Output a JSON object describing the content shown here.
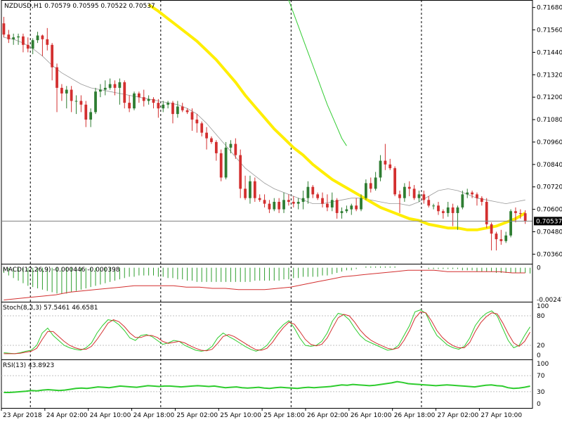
{
  "chart_data": {
    "type": "candlestick",
    "symbol": "NZDUSD,H1",
    "ohlc_header": "0.70579 0.70595 0.70522 0.70537",
    "current_price": "0.70537",
    "colors": {
      "background": "#ffffff",
      "bull": "#2e7d32",
      "bear": "#d32f2f",
      "ma_yellow": "#ffee00",
      "ma_green": "#33cc33",
      "ma_gray": "#999999",
      "grid": "#000000",
      "macd_hist": "#2e9e2e",
      "macd_signal": "#d32f2f",
      "stoch_main": "#2ecc2e",
      "stoch_signal": "#d32f2f",
      "rsi": "#2ecc2e"
    },
    "price_axis": {
      "min": 0.7032,
      "max": 0.7172,
      "ticks": [
        "0.71680",
        "0.71560",
        "0.71440",
        "0.71320",
        "0.71200",
        "0.71080",
        "0.70960",
        "0.70840",
        "0.70720",
        "0.70600",
        "0.70480",
        "0.70360"
      ]
    },
    "x_axis": {
      "bars_total": 110,
      "labels": [
        "23 Apr 2018",
        "24 Apr 02:00",
        "24 Apr 10:00",
        "24 Apr 18:00",
        "25 Apr 02:00",
        "25 Apr 10:00",
        "25 Apr 18:00",
        "26 Apr 02:00",
        "26 Apr 10:00",
        "26 Apr 18:00",
        "27 Apr 02:00",
        "27 Apr 10:00"
      ],
      "label_bars": [
        0,
        9,
        18,
        27,
        36,
        45,
        54,
        63,
        72,
        81,
        90,
        99
      ],
      "vlines_at_bars": [
        6,
        33,
        60,
        87
      ]
    },
    "candles": [
      [
        0.71595,
        0.71535,
        0.7152,
        0.7163
      ],
      [
        0.71535,
        0.7151,
        0.7149,
        0.7156
      ],
      [
        0.7151,
        0.7152,
        0.7148,
        0.7154
      ],
      [
        0.7152,
        0.71525,
        0.7148,
        0.7154
      ],
      [
        0.71525,
        0.7148,
        0.7144,
        0.7154
      ],
      [
        0.7148,
        0.7146,
        0.7144,
        0.7152
      ],
      [
        0.7146,
        0.71505,
        0.7143,
        0.71515
      ],
      [
        0.71505,
        0.7153,
        0.7149,
        0.7155
      ],
      [
        0.7153,
        0.7151,
        0.7142,
        0.71535
      ],
      [
        0.7151,
        0.7148,
        0.7145,
        0.7157
      ],
      [
        0.7148,
        0.7136,
        0.7129,
        0.7149
      ],
      [
        0.7136,
        0.7125,
        0.7112,
        0.7138
      ],
      [
        0.7125,
        0.7122,
        0.7118,
        0.7127
      ],
      [
        0.7122,
        0.7124,
        0.7114,
        0.7126
      ],
      [
        0.7124,
        0.7118,
        0.7112,
        0.7126
      ],
      [
        0.7118,
        0.7118,
        0.7111,
        0.7121
      ],
      [
        0.7118,
        0.7116,
        0.7112,
        0.7121
      ],
      [
        0.7116,
        0.7108,
        0.7104,
        0.7118
      ],
      [
        0.7108,
        0.7112,
        0.7104,
        0.7114
      ],
      [
        0.7112,
        0.7123,
        0.7111,
        0.7125
      ],
      [
        0.7123,
        0.7124,
        0.712,
        0.7127
      ],
      [
        0.7124,
        0.7125,
        0.7121,
        0.7129
      ],
      [
        0.7125,
        0.7127,
        0.7124,
        0.713
      ],
      [
        0.7127,
        0.7125,
        0.7121,
        0.7129
      ],
      [
        0.7125,
        0.7128,
        0.7116,
        0.713
      ],
      [
        0.7128,
        0.7117,
        0.7114,
        0.7129
      ],
      [
        0.7117,
        0.7114,
        0.7112,
        0.7121
      ],
      [
        0.7114,
        0.7122,
        0.7113,
        0.7123
      ],
      [
        0.7122,
        0.712,
        0.7117,
        0.7123
      ],
      [
        0.712,
        0.7118,
        0.7115,
        0.7124
      ],
      [
        0.7118,
        0.7119,
        0.7116,
        0.7121
      ],
      [
        0.7119,
        0.7117,
        0.7114,
        0.712
      ],
      [
        0.7117,
        0.7114,
        0.7109,
        0.7119
      ],
      [
        0.7114,
        0.7116,
        0.7112,
        0.7118
      ],
      [
        0.7116,
        0.7117,
        0.7114,
        0.7118
      ],
      [
        0.7117,
        0.7111,
        0.7106,
        0.7118
      ],
      [
        0.7111,
        0.7115,
        0.7109,
        0.7118
      ],
      [
        0.7115,
        0.7113,
        0.7112,
        0.7117
      ],
      [
        0.7113,
        0.7112,
        0.7111,
        0.7114
      ],
      [
        0.7112,
        0.7108,
        0.7102,
        0.7114
      ],
      [
        0.7108,
        0.7106,
        0.7101,
        0.7111
      ],
      [
        0.7106,
        0.7101,
        0.7099,
        0.7107
      ],
      [
        0.7101,
        0.7098,
        0.7092,
        0.7104
      ],
      [
        0.7098,
        0.7096,
        0.7095,
        0.7099
      ],
      [
        0.7096,
        0.709,
        0.7086,
        0.7097
      ],
      [
        0.709,
        0.7077,
        0.7075,
        0.7092
      ],
      [
        0.7077,
        0.7093,
        0.7076,
        0.7096
      ],
      [
        0.7093,
        0.7095,
        0.709,
        0.7097
      ],
      [
        0.7095,
        0.7089,
        0.7087,
        0.7098
      ],
      [
        0.7089,
        0.7071,
        0.7066,
        0.7092
      ],
      [
        0.7071,
        0.7066,
        0.7065,
        0.7078
      ],
      [
        0.7066,
        0.7075,
        0.7063,
        0.7078
      ],
      [
        0.7075,
        0.7066,
        0.7064,
        0.7077
      ],
      [
        0.7066,
        0.7065,
        0.7064,
        0.7068
      ],
      [
        0.7065,
        0.7063,
        0.7061,
        0.7068
      ],
      [
        0.7063,
        0.706,
        0.7058,
        0.7065
      ],
      [
        0.706,
        0.7064,
        0.7059,
        0.7066
      ],
      [
        0.7064,
        0.706,
        0.7058,
        0.7066
      ],
      [
        0.706,
        0.7065,
        0.7058,
        0.7069
      ],
      [
        0.7065,
        0.7064,
        0.7062,
        0.7068
      ],
      [
        0.7064,
        0.7063,
        0.7061,
        0.7067
      ],
      [
        0.7063,
        0.7064,
        0.706,
        0.7066
      ],
      [
        0.7064,
        0.7066,
        0.706,
        0.707
      ],
      [
        0.7066,
        0.7072,
        0.7063,
        0.7075
      ],
      [
        0.7072,
        0.7068,
        0.7066,
        0.7073
      ],
      [
        0.7068,
        0.7066,
        0.7065,
        0.7069
      ],
      [
        0.7066,
        0.7063,
        0.7061,
        0.7069
      ],
      [
        0.7063,
        0.7061,
        0.7059,
        0.7068
      ],
      [
        0.7061,
        0.7065,
        0.7059,
        0.7069
      ],
      [
        0.7065,
        0.7058,
        0.7055,
        0.7066
      ],
      [
        0.7058,
        0.7059,
        0.7055,
        0.7061
      ],
      [
        0.7059,
        0.706,
        0.7058,
        0.7062
      ],
      [
        0.706,
        0.7062,
        0.7057,
        0.7063
      ],
      [
        0.7062,
        0.706,
        0.7059,
        0.7066
      ],
      [
        0.706,
        0.7066,
        0.7059,
        0.7068
      ],
      [
        0.7066,
        0.7074,
        0.7065,
        0.7076
      ],
      [
        0.7074,
        0.7071,
        0.7069,
        0.7077
      ],
      [
        0.7071,
        0.7077,
        0.707,
        0.708
      ],
      [
        0.7077,
        0.7086,
        0.7075,
        0.7089
      ],
      [
        0.7086,
        0.7084,
        0.7081,
        0.7095
      ],
      [
        0.7084,
        0.7082,
        0.7081,
        0.7087
      ],
      [
        0.7082,
        0.7068,
        0.7067,
        0.7083
      ],
      [
        0.7068,
        0.7066,
        0.7058,
        0.707
      ],
      [
        0.7066,
        0.7072,
        0.7064,
        0.7074
      ],
      [
        0.7072,
        0.7071,
        0.7067,
        0.7075
      ],
      [
        0.7071,
        0.7066,
        0.7065,
        0.7073
      ],
      [
        0.7066,
        0.7068,
        0.7064,
        0.707
      ],
      [
        0.7068,
        0.7065,
        0.7063,
        0.707
      ],
      [
        0.7065,
        0.7062,
        0.7061,
        0.7067
      ],
      [
        0.7062,
        0.7062,
        0.706,
        0.7063
      ],
      [
        0.7062,
        0.7059,
        0.7057,
        0.7064
      ],
      [
        0.7059,
        0.7058,
        0.7055,
        0.706
      ],
      [
        0.7058,
        0.7061,
        0.7056,
        0.7064
      ],
      [
        0.7061,
        0.7058,
        0.7051,
        0.7063
      ],
      [
        0.7058,
        0.7061,
        0.7049,
        0.7062
      ],
      [
        0.7061,
        0.7068,
        0.706,
        0.707
      ],
      [
        0.7068,
        0.7069,
        0.7066,
        0.7071
      ],
      [
        0.7069,
        0.7068,
        0.7066,
        0.707
      ],
      [
        0.7068,
        0.7066,
        0.7062,
        0.7069
      ],
      [
        0.7066,
        0.7064,
        0.7062,
        0.7067
      ],
      [
        0.7064,
        0.7052,
        0.705,
        0.7066
      ],
      [
        0.7052,
        0.7047,
        0.7038,
        0.7053
      ],
      [
        0.7047,
        0.7044,
        0.7038,
        0.7048
      ],
      [
        0.7044,
        0.7043,
        0.7041,
        0.7049
      ],
      [
        0.7043,
        0.7046,
        0.7042,
        0.7048
      ],
      [
        0.7046,
        0.7059,
        0.7045,
        0.706
      ],
      [
        0.7059,
        0.7058,
        0.7053,
        0.7061
      ],
      [
        0.7058,
        0.70579,
        0.7055,
        0.706
      ],
      [
        0.70579,
        0.70537,
        0.70522,
        0.70595
      ]
    ],
    "ma_yellow": [
      0.71695,
      0.7166,
      0.7162,
      0.7158,
      0.7154,
      0.715,
      0.7145,
      0.714,
      0.7134,
      0.7128,
      0.7121,
      0.7115,
      0.7109,
      0.7103,
      0.7098,
      0.7093,
      0.7089,
      0.7084,
      0.708,
      0.7076,
      0.7073,
      0.707,
      0.7067,
      0.7064,
      0.7061,
      0.7059,
      0.7057,
      0.7055,
      0.7054,
      0.7052,
      0.7051,
      0.705,
      0.705,
      0.7049,
      0.7049,
      0.705,
      0.7051,
      0.7053,
      0.7055,
      0.7058,
      0.7061,
      0.7063
    ],
    "ma_yellow_start": 30,
    "ma_green": [
      0.7172,
      0.7165,
      0.7158,
      0.7151,
      0.7144,
      0.7137,
      0.713,
      0.7123,
      0.7116,
      0.711,
      0.7104,
      0.7098,
      0.7094
    ],
    "ma_green_start": 59,
    "ma_gray": [
      0.7152,
      0.7151,
      0.7149,
      0.7146,
      0.7142,
      0.7137,
      0.7133,
      0.713,
      0.7127,
      0.7125,
      0.7124,
      0.7123,
      0.7122,
      0.7121,
      0.712,
      0.7119,
      0.7118,
      0.7117,
      0.7116,
      0.7114,
      0.7111,
      0.7106,
      0.71,
      0.7094,
      0.7088,
      0.7082,
      0.7078,
      0.7074,
      0.7071,
      0.7069,
      0.7067,
      0.7065,
      0.7063,
      0.7063,
      0.7064,
      0.7065,
      0.7066,
      0.7066,
      0.7065,
      0.7064,
      0.7063,
      0.7063,
      0.7062,
      0.7064,
      0.7067,
      0.707,
      0.7071,
      0.707,
      0.7068,
      0.7066,
      0.7065,
      0.7064,
      0.7063,
      0.7064,
      0.7065,
      0.7066,
      0.7064,
      0.706
    ],
    "ma_gray_step": 2,
    "macd": {
      "label": "MACD(12,26,9) -0.000446 -0.000398",
      "ticks": [
        "0",
        "-0.002474"
      ],
      "min": -0.002474,
      "max": 0.0002,
      "hist": [
        -0.0004,
        -0.0006,
        -0.0008,
        -0.001,
        -0.0012,
        -0.0014,
        -0.0015,
        -0.0016,
        -0.0017,
        -0.0018,
        -0.0019,
        -0.002,
        -0.002,
        -0.002,
        -0.0019,
        -0.0018,
        -0.0017,
        -0.0016,
        -0.0015,
        -0.0014,
        -0.0013,
        -0.0012,
        -0.0011,
        -0.001,
        -0.0009,
        -0.0008,
        -0.0007,
        -0.0007,
        -0.0006,
        -0.0006,
        -0.0006,
        -0.0006,
        -0.0007,
        -0.0007,
        -0.0008,
        -0.0008,
        -0.0009,
        -0.0009,
        -0.001,
        -0.001,
        -0.0011,
        -0.0011,
        -0.0011,
        -0.0011,
        -0.0011,
        -0.0011,
        -0.0011,
        -0.0011,
        -0.0011,
        -0.0011,
        -0.0011,
        -0.0011,
        -0.001,
        -0.001,
        -0.001,
        -0.001,
        -0.001,
        -0.001,
        -0.0009,
        -0.0009,
        -0.0008,
        -0.0008,
        -0.0007,
        -0.0007,
        -0.0007,
        -0.0007,
        -0.0006,
        -0.0006,
        -0.0005,
        -0.0004,
        -0.0003,
        -0.0002,
        -0.0002,
        -0.0001,
        0.0,
        0.0001,
        0.0001,
        0.0001,
        0.0001,
        0.0001,
        0.0001,
        0.0001,
        0.0,
        0.0,
        0.0,
        0.0,
        0.0,
        0.0,
        -0.0001,
        -0.0001,
        -0.0001,
        -0.0001,
        -0.0001,
        -0.0001,
        -0.0001,
        -0.0002,
        -0.0002,
        -0.0002,
        -0.0003,
        -0.0003,
        -0.0003,
        -0.0003,
        -0.0004,
        -0.0004,
        -0.0004,
        -0.0004,
        -0.0004,
        -0.0004,
        -0.0004,
        -0.000446
      ],
      "signal": [
        -0.0025,
        -0.0024,
        -0.0023,
        -0.0022,
        -0.0021,
        -0.0019,
        -0.0018,
        -0.0017,
        -0.0016,
        -0.0015,
        -0.0014,
        -0.0014,
        -0.0014,
        -0.0014,
        -0.0015,
        -0.0015,
        -0.0016,
        -0.0016,
        -0.0017,
        -0.0017,
        -0.0017,
        -0.0016,
        -0.0015,
        -0.0013,
        -0.0011,
        -0.0009,
        -0.0007,
        -0.0006,
        -0.0005,
        -0.0004,
        -0.0003,
        -0.0002,
        -0.0002,
        -0.0002,
        -0.0003,
        -0.0003,
        -0.0003,
        -0.0003,
        -0.0003,
        -0.0004,
        -0.000398
      ]
    },
    "stoch": {
      "label": "Stoch(8,3,3) 57.5461 46.6581",
      "ticks": [
        "100",
        "80",
        "20",
        "0"
      ],
      "main": [
        5,
        4,
        3,
        5,
        8,
        10,
        20,
        45,
        55,
        40,
        30,
        20,
        15,
        12,
        10,
        15,
        25,
        45,
        60,
        72,
        70,
        62,
        50,
        35,
        30,
        40,
        42,
        38,
        30,
        22,
        25,
        30,
        28,
        20,
        15,
        10,
        8,
        10,
        18,
        35,
        45,
        38,
        32,
        25,
        18,
        12,
        8,
        12,
        20,
        35,
        50,
        62,
        70,
        55,
        35,
        20,
        18,
        20,
        28,
        45,
        70,
        85,
        82,
        72,
        55,
        40,
        30,
        25,
        20,
        15,
        10,
        12,
        20,
        40,
        60,
        88,
        92,
        85,
        60,
        40,
        30,
        20,
        15,
        12,
        18,
        35,
        60,
        75,
        85,
        90,
        80,
        55,
        30,
        15,
        20,
        40,
        57.5461
      ],
      "signal": [
        3,
        3,
        3,
        4,
        6,
        8,
        14,
        32,
        48,
        48,
        38,
        28,
        20,
        15,
        12,
        12,
        18,
        32,
        48,
        65,
        72,
        68,
        58,
        45,
        36,
        36,
        40,
        40,
        36,
        28,
        24,
        26,
        28,
        25,
        19,
        14,
        10,
        9,
        12,
        24,
        38,
        42,
        38,
        31,
        24,
        17,
        11,
        10,
        14,
        26,
        42,
        56,
        67,
        63,
        48,
        32,
        22,
        19,
        22,
        35,
        56,
        76,
        83,
        80,
        67,
        51,
        39,
        30,
        24,
        19,
        14,
        12,
        15,
        30,
        50,
        75,
        88,
        86,
        70,
        50,
        36,
        26,
        19,
        15,
        15,
        26,
        48,
        66,
        78,
        86,
        84,
        66,
        44,
        25,
        18,
        28,
        46.6581
      ]
    },
    "rsi": {
      "label": "RSI(13) 43.8923",
      "ticks": [
        "100",
        "70",
        "30",
        "0"
      ],
      "values": [
        28,
        28,
        29,
        30,
        31,
        33,
        32,
        34,
        35,
        34,
        33,
        34,
        36,
        38,
        39,
        38,
        40,
        42,
        41,
        40,
        42,
        44,
        43,
        42,
        41,
        43,
        45,
        44,
        43,
        44,
        44,
        43,
        42,
        43,
        44,
        45,
        44,
        43,
        44,
        42,
        40,
        41,
        42,
        40,
        39,
        40,
        41,
        39,
        38,
        40,
        41,
        40,
        39,
        38,
        40,
        41,
        40,
        41,
        42,
        43,
        45,
        47,
        46,
        48,
        47,
        46,
        45,
        46,
        48,
        50,
        52,
        55,
        53,
        50,
        49,
        48,
        47,
        46,
        45,
        46,
        47,
        46,
        45,
        44,
        43,
        42,
        44,
        46,
        47,
        45,
        44,
        40,
        38,
        39,
        41,
        43.8923
      ]
    }
  }
}
